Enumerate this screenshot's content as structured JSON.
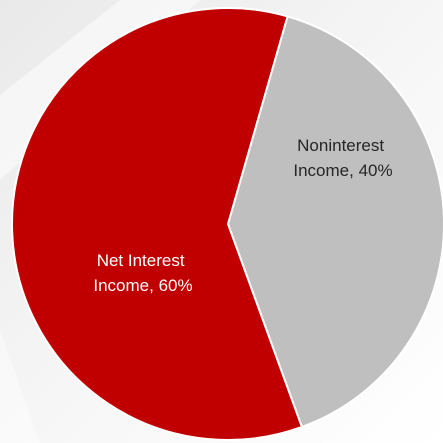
{
  "chart_data": {
    "type": "pie",
    "title": "",
    "slices": [
      {
        "label": "Noninterest Income",
        "value": 40,
        "percent_label": "40%",
        "color": "#bfbfbf",
        "text_color": "#262626"
      },
      {
        "label": "Net Interest Income",
        "value": 60,
        "percent_label": "60%",
        "color": "#c00000",
        "text_color": "#ffffff"
      }
    ],
    "labels": {
      "noninterest": {
        "line1": "Noninterest",
        "line2": "Income, 40%"
      },
      "net_interest": {
        "line1": "Net Interest",
        "line2": "Income, 60%"
      }
    },
    "legend": "none"
  }
}
